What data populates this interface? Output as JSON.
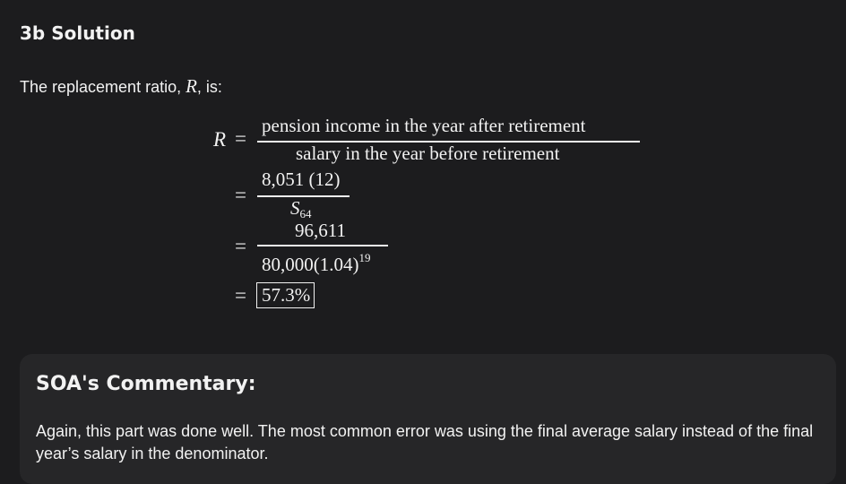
{
  "heading": "3b Solution",
  "intro": {
    "text_before": "The replacement ratio, ",
    "variable": "R",
    "text_after": ", is:"
  },
  "math": {
    "lhs": "R",
    "equals": "=",
    "line1": {
      "numerator": "pension income in the year after retirement",
      "denominator": "salary in the year before retirement"
    },
    "line2": {
      "numerator": "8,051 (12)",
      "denominator_base": "S",
      "denominator_subscript": "64"
    },
    "line3": {
      "numerator": "96,611",
      "denominator": "80,000(1.04)",
      "denominator_exponent": "19"
    },
    "result": "57.3%"
  },
  "commentary": {
    "title": "SOA's Commentary:",
    "text": "Again, this part was done well. The most common error was using the final average salary instead of the final year’s salary in the denominator."
  }
}
